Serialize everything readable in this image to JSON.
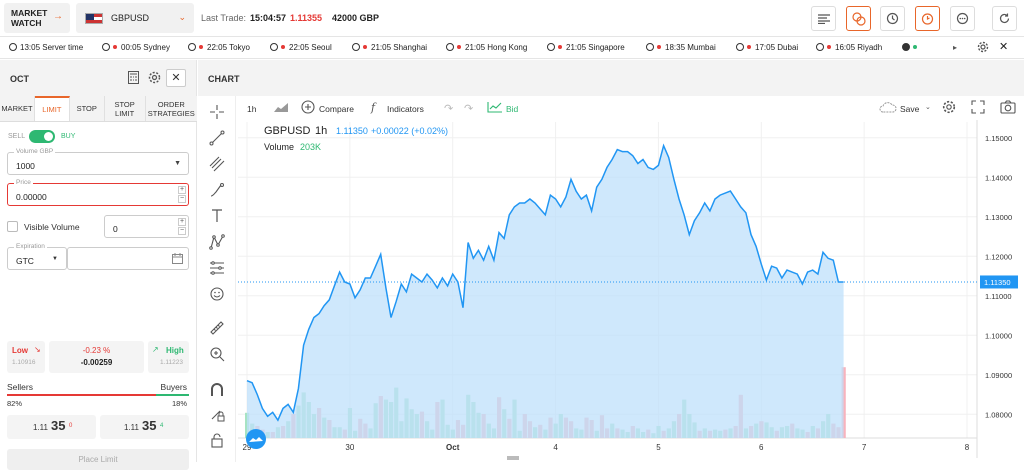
{
  "topbar": {
    "market_watch": "MARKET WATCH",
    "market_watch_arrow": "→",
    "symbol": "GBPUSD",
    "symbol_chevron": "⌄",
    "last_trade_label": "Last Trade:",
    "last_trade_time": "15:04:57",
    "last_trade_price": "1.11355",
    "last_trade_amount": "42000 GBP",
    "accent": "#e8662a"
  },
  "times": [
    {
      "time": "13:05",
      "city": "Server time",
      "status": "none"
    },
    {
      "time": "00:05",
      "city": "Sydney",
      "status": "red"
    },
    {
      "time": "22:05",
      "city": "Tokyo",
      "status": "red"
    },
    {
      "time": "22:05",
      "city": "Seoul",
      "status": "red"
    },
    {
      "time": "21:05",
      "city": "Shanghai",
      "status": "red"
    },
    {
      "time": "21:05",
      "city": "Hong Kong",
      "status": "red"
    },
    {
      "time": "21:05",
      "city": "Singapore",
      "status": "red"
    },
    {
      "time": "18:35",
      "city": "Mumbai",
      "status": "red"
    },
    {
      "time": "17:05",
      "city": "Dubai",
      "status": "red"
    },
    {
      "time": "16:05",
      "city": "Riyadh",
      "status": "green"
    }
  ],
  "order_panel": {
    "title": "OCT",
    "tabs": [
      "MARKET",
      "LIMIT",
      "STOP",
      "STOP LIMIT",
      "ORDER STRATEGIES"
    ],
    "active_tab": "LIMIT",
    "sell_label": "SELL",
    "buy_label": "BUY",
    "volume_label": "Volume GBP",
    "volume_value": "1000",
    "price_label": "Price",
    "price_value": "0.00000",
    "visible_volume_label": "Visible Volume",
    "visible_volume_value": "0",
    "expiration_label": "Expiration",
    "expiration_value": "GTC",
    "low_label": "Low",
    "low_value": "1.10916",
    "change_pct": "-0.23 %",
    "change_abs": "-0.00259",
    "high_label": "High",
    "high_value": "1.11223",
    "sellers_label": "Sellers",
    "buyers_label": "Buyers",
    "sellers_pct": "82%",
    "buyers_pct": "18%",
    "sellers_fraction": 0.82,
    "bid_prefix": "1.11",
    "bid_big": "35",
    "bid_small": "0",
    "ask_prefix": "1.11",
    "ask_big": "35",
    "ask_small": "4",
    "place_label": "Place Limit"
  },
  "chart_header": {
    "title": "CHART",
    "interval": "1h",
    "compare_label": "Compare",
    "indicators_label": "Indicators",
    "bid_label": "Bid",
    "save_label": "Save"
  },
  "chart_data": {
    "type": "area",
    "symbol": "GBPUSD",
    "interval": "1h",
    "last_price": "1.11350",
    "change": "+0.00022 (+0.02%)",
    "volume_label": "Volume",
    "volume_value": "203K",
    "current_price_tag": "1.11350",
    "ylim": [
      1.074,
      1.154
    ],
    "yticks": [
      "1.15000",
      "1.14000",
      "1.13000",
      "1.12000",
      "1.11000",
      "1.10000",
      "1.09000",
      "1.08000"
    ],
    "ytick_values": [
      1.15,
      1.14,
      1.13,
      1.12,
      1.11,
      1.1,
      1.09,
      1.08
    ],
    "xlabels": [
      "29",
      "30",
      "Oct",
      "4",
      "5",
      "6",
      "7",
      "8"
    ],
    "xlabel_positions": [
      0,
      20,
      40,
      60,
      80,
      100,
      120,
      140
    ],
    "xlim": [
      0,
      140
    ],
    "series_color": "#2196f3",
    "fill_color": "#bfe0fb",
    "price": [
      [
        0,
        1.0885
      ],
      [
        1,
        1.088
      ],
      [
        2,
        1.085
      ],
      [
        3,
        1.0815
      ],
      [
        4,
        1.0795
      ],
      [
        5,
        1.0805
      ],
      [
        6,
        1.0785
      ],
      [
        7,
        1.0815
      ],
      [
        8,
        1.0825
      ],
      [
        9,
        1.0805
      ],
      [
        10,
        1.0865
      ],
      [
        11,
        1.0975
      ],
      [
        12,
        1.1015
      ],
      [
        13,
        1.1045
      ],
      [
        14,
        1.1055
      ],
      [
        15,
        1.1075
      ],
      [
        16,
        1.109
      ],
      [
        17,
        1.1125
      ],
      [
        18,
        1.116
      ],
      [
        19,
        1.1135
      ],
      [
        20,
        1.113
      ],
      [
        21,
        1.1095
      ],
      [
        22,
        1.1115
      ],
      [
        23,
        1.1145
      ],
      [
        24,
        1.1145
      ],
      [
        25,
        1.1175
      ],
      [
        26,
        1.1205
      ],
      [
        27,
        1.112
      ],
      [
        28,
        1.1045
      ],
      [
        29,
        1.1085
      ],
      [
        30,
        1.113
      ],
      [
        31,
        1.111
      ],
      [
        32,
        1.1155
      ],
      [
        33,
        1.1145
      ],
      [
        34,
        1.1135
      ],
      [
        35,
        1.1155
      ],
      [
        36,
        1.114
      ],
      [
        37,
        1.112
      ],
      [
        38,
        1.1145
      ],
      [
        39,
        1.1125
      ],
      [
        40,
        1.1155
      ],
      [
        41,
        1.1135
      ],
      [
        42,
        1.107
      ],
      [
        43,
        1.1235
      ],
      [
        44,
        1.1195
      ],
      [
        45,
        1.1215
      ],
      [
        46,
        1.119
      ],
      [
        47,
        1.1225
      ],
      [
        48,
        1.119
      ],
      [
        49,
        1.126
      ],
      [
        50,
        1.1245
      ],
      [
        51,
        1.1305
      ],
      [
        52,
        1.1325
      ],
      [
        53,
        1.1335
      ],
      [
        54,
        1.1335
      ],
      [
        55,
        1.1345
      ],
      [
        56,
        1.1335
      ],
      [
        57,
        1.132
      ],
      [
        58,
        1.1305
      ],
      [
        59,
        1.1355
      ],
      [
        60,
        1.1345
      ],
      [
        61,
        1.1325
      ],
      [
        62,
        1.135
      ],
      [
        63,
        1.1395
      ],
      [
        64,
        1.1365
      ],
      [
        65,
        1.1345
      ],
      [
        66,
        1.1355
      ],
      [
        67,
        1.1315
      ],
      [
        68,
        1.1375
      ],
      [
        69,
        1.1395
      ],
      [
        70,
        1.1425
      ],
      [
        71,
        1.1445
      ],
      [
        72,
        1.147
      ],
      [
        73,
        1.1465
      ],
      [
        74,
        1.1465
      ],
      [
        75,
        1.1455
      ],
      [
        76,
        1.1435
      ],
      [
        77,
        1.1445
      ],
      [
        78,
        1.1425
      ],
      [
        79,
        1.142
      ],
      [
        80,
        1.143
      ],
      [
        81,
        1.148
      ],
      [
        82,
        1.145
      ],
      [
        83,
        1.1395
      ],
      [
        84,
        1.1345
      ],
      [
        85,
        1.1305
      ],
      [
        86,
        1.1255
      ],
      [
        87,
        1.129
      ],
      [
        88,
        1.131
      ],
      [
        89,
        1.1335
      ],
      [
        90,
        1.1315
      ],
      [
        91,
        1.1345
      ],
      [
        92,
        1.1355
      ],
      [
        93,
        1.136
      ],
      [
        94,
        1.1365
      ],
      [
        95,
        1.1345
      ],
      [
        96,
        1.1325
      ],
      [
        97,
        1.131
      ],
      [
        98,
        1.1255
      ],
      [
        99,
        1.1225
      ],
      [
        100,
        1.118
      ],
      [
        101,
        1.114
      ],
      [
        102,
        1.1175
      ],
      [
        103,
        1.117
      ],
      [
        104,
        1.1145
      ],
      [
        105,
        1.1165
      ],
      [
        106,
        1.116
      ],
      [
        107,
        1.1155
      ],
      [
        108,
        1.113
      ],
      [
        109,
        1.116
      ],
      [
        110,
        1.1165
      ],
      [
        111,
        1.1155
      ],
      [
        112,
        1.121
      ],
      [
        113,
        1.1195
      ],
      [
        114,
        1.119
      ],
      [
        115,
        1.1135
      ],
      [
        116,
        1.1135
      ]
    ],
    "volume": [
      [
        0,
        0.21,
        "g"
      ],
      [
        1,
        0.12,
        "g"
      ],
      [
        2,
        0.1,
        "r"
      ],
      [
        3,
        0.07,
        "r"
      ],
      [
        4,
        0.05,
        "g"
      ],
      [
        5,
        0.05,
        "r"
      ],
      [
        6,
        0.09,
        "g"
      ],
      [
        7,
        0.1,
        "r"
      ],
      [
        8,
        0.14,
        "g"
      ],
      [
        9,
        0.2,
        "r"
      ],
      [
        10,
        0.27,
        "g"
      ],
      [
        11,
        0.38,
        "g"
      ],
      [
        12,
        0.3,
        "g"
      ],
      [
        13,
        0.2,
        "g"
      ],
      [
        14,
        0.25,
        "r"
      ],
      [
        15,
        0.17,
        "g"
      ],
      [
        16,
        0.15,
        "r"
      ],
      [
        17,
        0.09,
        "g"
      ],
      [
        18,
        0.09,
        "g"
      ],
      [
        19,
        0.07,
        "r"
      ],
      [
        20,
        0.25,
        "g"
      ],
      [
        21,
        0.06,
        "g"
      ],
      [
        22,
        0.16,
        "r"
      ],
      [
        23,
        0.12,
        "r"
      ],
      [
        24,
        0.08,
        "g"
      ],
      [
        25,
        0.29,
        "g"
      ],
      [
        26,
        0.35,
        "r"
      ],
      [
        27,
        0.32,
        "g"
      ],
      [
        28,
        0.3,
        "g"
      ],
      [
        29,
        0.42,
        "g"
      ],
      [
        30,
        0.14,
        "g"
      ],
      [
        31,
        0.33,
        "g"
      ],
      [
        32,
        0.24,
        "g"
      ],
      [
        33,
        0.2,
        "g"
      ],
      [
        34,
        0.22,
        "r"
      ],
      [
        35,
        0.14,
        "g"
      ],
      [
        36,
        0.07,
        "g"
      ],
      [
        37,
        0.3,
        "r"
      ],
      [
        38,
        0.32,
        "g"
      ],
      [
        39,
        0.11,
        "g"
      ],
      [
        40,
        0.07,
        "g"
      ],
      [
        41,
        0.15,
        "r"
      ],
      [
        42,
        0.11,
        "r"
      ],
      [
        43,
        0.36,
        "g"
      ],
      [
        44,
        0.3,
        "g"
      ],
      [
        45,
        0.21,
        "g"
      ],
      [
        46,
        0.2,
        "r"
      ],
      [
        47,
        0.12,
        "g"
      ],
      [
        48,
        0.08,
        "g"
      ],
      [
        49,
        0.34,
        "r"
      ],
      [
        50,
        0.24,
        "g"
      ],
      [
        51,
        0.16,
        "r"
      ],
      [
        52,
        0.32,
        "g"
      ],
      [
        53,
        0.06,
        "g"
      ],
      [
        54,
        0.2,
        "r"
      ],
      [
        55,
        0.14,
        "r"
      ],
      [
        56,
        0.09,
        "g"
      ],
      [
        57,
        0.11,
        "r"
      ],
      [
        58,
        0.07,
        "g"
      ],
      [
        59,
        0.17,
        "r"
      ],
      [
        60,
        0.12,
        "g"
      ],
      [
        61,
        0.2,
        "g"
      ],
      [
        62,
        0.17,
        "r"
      ],
      [
        63,
        0.14,
        "r"
      ],
      [
        64,
        0.08,
        "g"
      ],
      [
        65,
        0.07,
        "g"
      ],
      [
        66,
        0.17,
        "r"
      ],
      [
        67,
        0.15,
        "r"
      ],
      [
        68,
        0.06,
        "g"
      ],
      [
        69,
        0.19,
        "r"
      ],
      [
        70,
        0.08,
        "r"
      ],
      [
        71,
        0.12,
        "g"
      ],
      [
        72,
        0.08,
        "r"
      ],
      [
        73,
        0.07,
        "g"
      ],
      [
        74,
        0.05,
        "g"
      ],
      [
        75,
        0.1,
        "r"
      ],
      [
        76,
        0.08,
        "g"
      ],
      [
        77,
        0.05,
        "g"
      ],
      [
        78,
        0.07,
        "r"
      ],
      [
        79,
        0.04,
        "g"
      ],
      [
        80,
        0.1,
        "g"
      ],
      [
        81,
        0.06,
        "r"
      ],
      [
        82,
        0.08,
        "g"
      ],
      [
        83,
        0.14,
        "g"
      ],
      [
        84,
        0.2,
        "r"
      ],
      [
        85,
        0.32,
        "g"
      ],
      [
        86,
        0.2,
        "g"
      ],
      [
        87,
        0.13,
        "g"
      ],
      [
        88,
        0.06,
        "r"
      ],
      [
        89,
        0.08,
        "g"
      ],
      [
        90,
        0.06,
        "r"
      ],
      [
        91,
        0.07,
        "g"
      ],
      [
        92,
        0.06,
        "g"
      ],
      [
        93,
        0.07,
        "r"
      ],
      [
        94,
        0.08,
        "g"
      ],
      [
        95,
        0.1,
        "r"
      ],
      [
        96,
        0.36,
        "r"
      ],
      [
        97,
        0.08,
        "g"
      ],
      [
        98,
        0.1,
        "r"
      ],
      [
        99,
        0.12,
        "g"
      ],
      [
        100,
        0.14,
        "r"
      ],
      [
        101,
        0.13,
        "g"
      ],
      [
        102,
        0.09,
        "g"
      ],
      [
        103,
        0.06,
        "r"
      ],
      [
        104,
        0.09,
        "g"
      ],
      [
        105,
        0.1,
        "g"
      ],
      [
        106,
        0.12,
        "r"
      ],
      [
        107,
        0.08,
        "g"
      ],
      [
        108,
        0.07,
        "g"
      ],
      [
        109,
        0.05,
        "r"
      ],
      [
        110,
        0.1,
        "g"
      ],
      [
        111,
        0.08,
        "r"
      ],
      [
        112,
        0.14,
        "g"
      ],
      [
        113,
        0.2,
        "g"
      ],
      [
        114,
        0.12,
        "r"
      ],
      [
        115,
        0.09,
        "r"
      ],
      [
        116,
        0.59,
        "r"
      ]
    ]
  }
}
